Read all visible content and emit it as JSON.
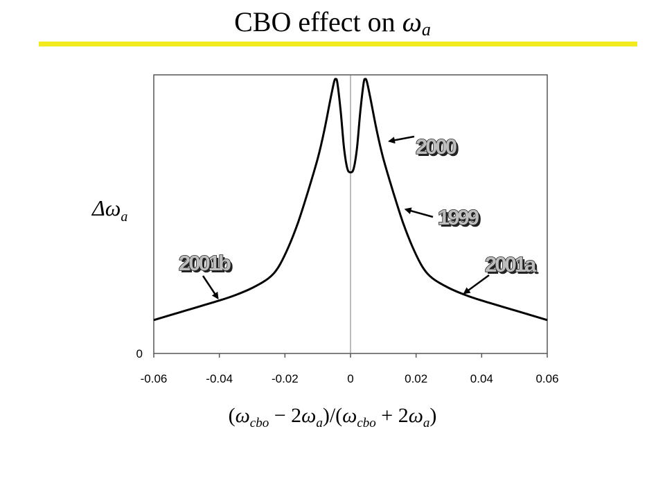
{
  "slide": {
    "title_text": "CBO effect on",
    "title_symbol": "ω",
    "title_sub": "a",
    "rule_color": "#f2ea1d"
  },
  "axes": {
    "ylabel_symbol": "Δω",
    "ylabel_sub": "a",
    "xlabel": {
      "open": "(",
      "w1": "ω",
      "sub1": "cbo",
      "minus": " − 2",
      "w2": "ω",
      "sub2": "a",
      "mid": ")/(",
      "w3": "ω",
      "sub3": "cbo",
      "plus": " + 2",
      "w4": "ω",
      "sub4": "a",
      "close": ")"
    }
  },
  "chart_data": {
    "type": "line",
    "xlim": [
      -0.06,
      0.06
    ],
    "ylim": [
      0,
      1
    ],
    "x_ticks": [
      "-0.06",
      "-0.04",
      "-0.02",
      "0",
      "0.02",
      "0.04",
      "0.06"
    ],
    "y_ticks": [
      "0"
    ],
    "series": [
      {
        "x": [
          -0.06,
          -0.05,
          -0.04,
          -0.035,
          -0.03,
          -0.025,
          -0.022,
          -0.019,
          -0.016,
          -0.013,
          -0.01,
          -0.008,
          -0.006,
          -0.005,
          -0.0045,
          -0.004,
          -0.003,
          -0.002,
          -0.001,
          0,
          0.001,
          0.002,
          0.003,
          0.004,
          0.0045,
          0.005,
          0.006,
          0.008,
          0.01,
          0.013,
          0.016,
          0.019,
          0.022,
          0.025,
          0.03,
          0.035,
          0.04,
          0.05,
          0.06
        ],
        "y": [
          0.12,
          0.155,
          0.19,
          0.21,
          0.235,
          0.27,
          0.31,
          0.38,
          0.47,
          0.58,
          0.7,
          0.8,
          0.92,
          0.975,
          0.985,
          0.97,
          0.87,
          0.74,
          0.665,
          0.65,
          0.665,
          0.74,
          0.87,
          0.97,
          0.985,
          0.975,
          0.92,
          0.8,
          0.7,
          0.58,
          0.47,
          0.38,
          0.31,
          0.27,
          0.235,
          0.21,
          0.19,
          0.155,
          0.12
        ]
      }
    ],
    "annotations": [
      {
        "text": "2000",
        "x": 0.011,
        "y": 0.76
      },
      {
        "text": "1999",
        "x": 0.016,
        "y": 0.52
      },
      {
        "text": "2001a",
        "x": 0.034,
        "y": 0.21
      },
      {
        "text": "2001b",
        "x": -0.04,
        "y": 0.19
      }
    ],
    "grid": false,
    "legend": "none"
  }
}
